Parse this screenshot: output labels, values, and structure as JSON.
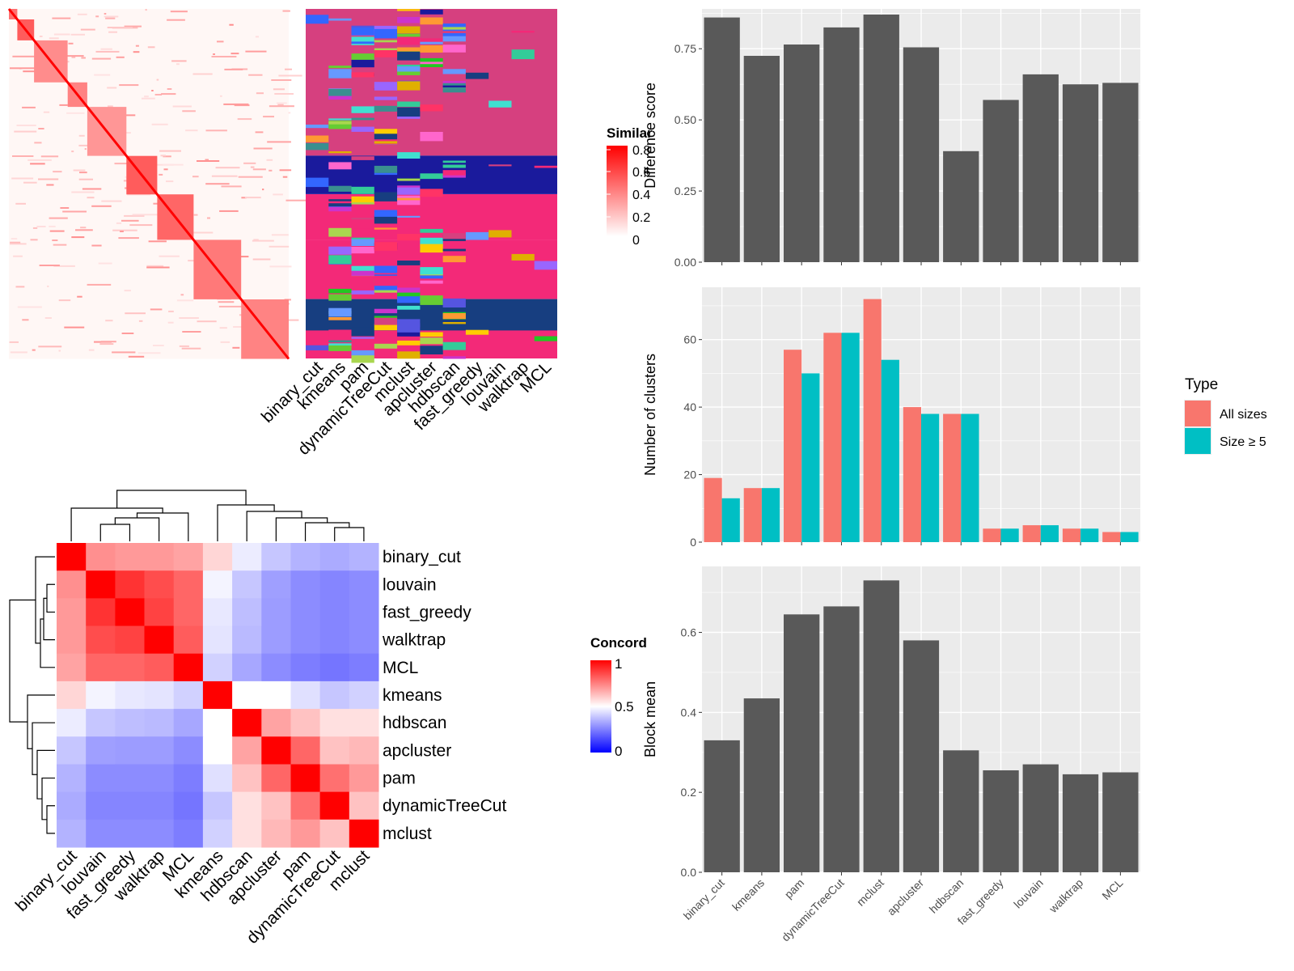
{
  "colors": {
    "bar_gray": "#595959",
    "panel_bg": "#ebebeb",
    "grid_white": "#ffffff",
    "all_sizes": "#f8766d",
    "size_ge5": "#00bfc4",
    "heat_red": "#ff0000",
    "heat_blue": "#0000ff",
    "heat_white": "#ffffff",
    "cluster_palette": [
      "#d6407f",
      "#1a1a9c",
      "#f32978",
      "#173e80",
      "#a9d64f",
      "#3a8f8f",
      "#22c722",
      "#5555e0",
      "#e0b000",
      "#40e0d0",
      "#ff66cc",
      "#9966ff",
      "#66cc33",
      "#ff9933",
      "#3366ff",
      "#cc33cc",
      "#33cc99",
      "#ffcc00",
      "#6699ff",
      "#ff3366"
    ]
  },
  "similarity_heatmap": {
    "legend_title": "Similar",
    "legend_ticks": [
      "0.8",
      "0.6",
      "0.4",
      "0.2",
      "0"
    ],
    "blocks": [
      {
        "start": 0.0,
        "end": 0.03,
        "strength": 0.75
      },
      {
        "start": 0.03,
        "end": 0.09,
        "strength": 0.85
      },
      {
        "start": 0.09,
        "end": 0.21,
        "strength": 0.6
      },
      {
        "start": 0.21,
        "end": 0.28,
        "strength": 0.65
      },
      {
        "start": 0.28,
        "end": 0.42,
        "strength": 0.55
      },
      {
        "start": 0.42,
        "end": 0.53,
        "strength": 0.85
      },
      {
        "start": 0.53,
        "end": 0.66,
        "strength": 0.8
      },
      {
        "start": 0.66,
        "end": 0.83,
        "strength": 0.7
      },
      {
        "start": 0.83,
        "end": 1.0,
        "strength": 0.65
      }
    ]
  },
  "partition_panel": {
    "methods": [
      "binary_cut",
      "kmeans",
      "pam",
      "dynamicTreeCut",
      "mclust",
      "apcluster",
      "hdbscan",
      "fast_greedy",
      "louvain",
      "walktrap",
      "MCL"
    ],
    "bands": [
      {
        "start": 0.0,
        "end": 0.42,
        "color_index": 0
      },
      {
        "start": 0.42,
        "end": 0.53,
        "color_index": 1
      },
      {
        "start": 0.53,
        "end": 0.66,
        "color_index": 2
      },
      {
        "start": 0.66,
        "end": 0.83,
        "color_index": 2
      },
      {
        "start": 0.83,
        "end": 0.92,
        "color_index": 3
      },
      {
        "start": 0.92,
        "end": 1.0,
        "color_index": 2
      }
    ]
  },
  "concordance_heatmap": {
    "legend_title": "Concord",
    "legend_ticks": [
      "1",
      "0.5",
      "0"
    ],
    "labels": [
      "binary_cut",
      "louvain",
      "fast_greedy",
      "walktrap",
      "MCL",
      "kmeans",
      "hdbscan",
      "apcluster",
      "pam",
      "dynamicTreeCut",
      "mclust"
    ],
    "matrix": [
      [
        1.0,
        0.72,
        0.7,
        0.7,
        0.68,
        0.58,
        0.45,
        0.35,
        0.3,
        0.28,
        0.3
      ],
      [
        0.72,
        1.0,
        0.9,
        0.85,
        0.8,
        0.47,
        0.35,
        0.25,
        0.2,
        0.18,
        0.2
      ],
      [
        0.7,
        0.9,
        1.0,
        0.87,
        0.8,
        0.44,
        0.33,
        0.24,
        0.2,
        0.18,
        0.2
      ],
      [
        0.7,
        0.85,
        0.87,
        1.0,
        0.82,
        0.43,
        0.32,
        0.24,
        0.2,
        0.18,
        0.2
      ],
      [
        0.68,
        0.8,
        0.8,
        0.82,
        1.0,
        0.38,
        0.27,
        0.2,
        0.16,
        0.14,
        0.16
      ],
      [
        0.58,
        0.47,
        0.44,
        0.43,
        0.38,
        1.0,
        0.5,
        0.5,
        0.42,
        0.35,
        0.38
      ],
      [
        0.45,
        0.35,
        0.33,
        0.32,
        0.27,
        0.5,
        1.0,
        0.68,
        0.62,
        0.56,
        0.56
      ],
      [
        0.35,
        0.25,
        0.24,
        0.24,
        0.2,
        0.5,
        0.68,
        1.0,
        0.8,
        0.62,
        0.64
      ],
      [
        0.3,
        0.2,
        0.2,
        0.2,
        0.16,
        0.42,
        0.62,
        0.8,
        1.0,
        0.78,
        0.7
      ],
      [
        0.28,
        0.18,
        0.18,
        0.18,
        0.14,
        0.35,
        0.56,
        0.62,
        0.78,
        1.0,
        0.62
      ],
      [
        0.3,
        0.2,
        0.2,
        0.2,
        0.16,
        0.38,
        0.56,
        0.64,
        0.7,
        0.62,
        1.0
      ]
    ]
  },
  "chart_data": [
    {
      "type": "bar",
      "categories": [
        "binary_cut",
        "kmeans",
        "pam",
        "dynamicTreeCut",
        "mclust",
        "apcluster",
        "hdbscan",
        "fast_greedy",
        "louvain",
        "walktrap",
        "MCL"
      ],
      "values": [
        0.86,
        0.725,
        0.765,
        0.825,
        0.87,
        0.755,
        0.39,
        0.57,
        0.66,
        0.625,
        0.63
      ],
      "xlabel": "",
      "ylabel": "Difference score",
      "ylim": [
        0,
        0.89
      ],
      "yticks": [
        "0.00",
        "0.25",
        "0.50",
        "0.75"
      ],
      "grid": true
    },
    {
      "type": "bar",
      "categories": [
        "binary_cut",
        "kmeans",
        "pam",
        "dynamicTreeCut",
        "mclust",
        "apcluster",
        "hdbscan",
        "fast_greedy",
        "louvain",
        "walktrap",
        "MCL"
      ],
      "series": [
        {
          "name": "All sizes",
          "values": [
            19,
            16,
            57,
            62,
            72,
            40,
            38,
            4,
            5,
            4,
            3
          ]
        },
        {
          "name": "Size ≥ 5",
          "values": [
            13,
            16,
            50,
            62,
            54,
            38,
            38,
            4,
            5,
            4,
            3
          ]
        }
      ],
      "xlabel": "",
      "ylabel": "Number of clusters",
      "ylim": [
        0,
        75.5
      ],
      "yticks": [
        "0",
        "20",
        "40",
        "60"
      ],
      "legend_title": "Type",
      "legend_position": "right",
      "grid": true
    },
    {
      "type": "bar",
      "categories": [
        "binary_cut",
        "kmeans",
        "pam",
        "dynamicTreeCut",
        "mclust",
        "apcluster",
        "hdbscan",
        "fast_greedy",
        "louvain",
        "walktrap",
        "MCL"
      ],
      "values": [
        0.33,
        0.435,
        0.645,
        0.665,
        0.73,
        0.58,
        0.305,
        0.255,
        0.27,
        0.245,
        0.25
      ],
      "xlabel": "",
      "ylabel": "Block mean",
      "ylim": [
        0,
        0.765
      ],
      "yticks": [
        "0.0",
        "0.2",
        "0.4",
        "0.6"
      ],
      "grid": true
    }
  ]
}
